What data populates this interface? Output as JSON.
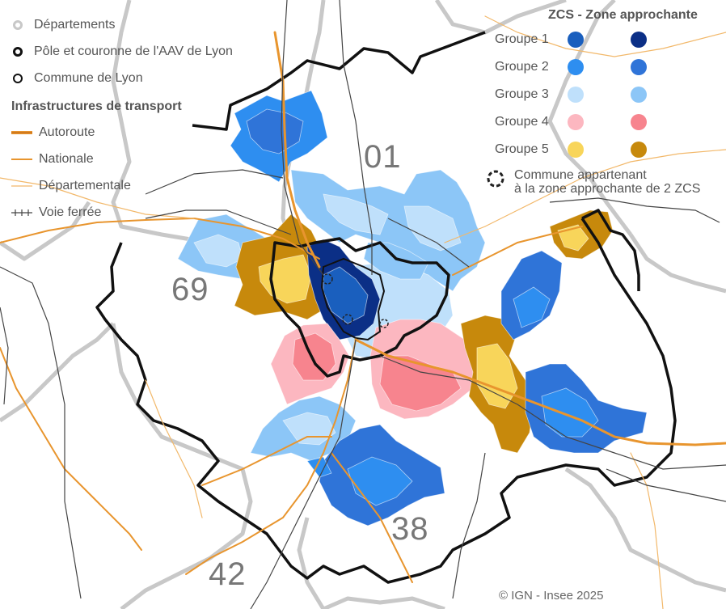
{
  "legend": {
    "departements": "Départements",
    "pole_couronne": "Pôle et couronne de l'AAV de Lyon",
    "commune_lyon": "Commune de Lyon",
    "infra_title": "Infrastructures de transport",
    "autoroute": "Autoroute",
    "nationale": "Nationale",
    "departementale": "Départementale",
    "voie_ferree": "Voie ferrée"
  },
  "zcs_legend": {
    "header": "ZCS -  Zone approchante",
    "groups": [
      {
        "label": "Groupe 1",
        "zcs_color": "#1a5fbe",
        "approach_color": "#0b2f86"
      },
      {
        "label": "Groupe 2",
        "zcs_color": "#2e8ef0",
        "approach_color": "#2f74d8"
      },
      {
        "label": "Groupe 3",
        "zcs_color": "#bfe0fb",
        "approach_color": "#8cc6f7"
      },
      {
        "label": "Groupe 4",
        "zcs_color": "#fcb7c0",
        "approach_color": "#f7848e"
      },
      {
        "label": "Groupe 5",
        "zcs_color": "#f8d55a",
        "approach_color": "#c7890c"
      }
    ],
    "multi_zcs_line1": "Commune appartenant",
    "multi_zcs_line2": "à la zone approchante de 2 ZCS"
  },
  "departement_labels": {
    "d01": "01",
    "d69": "69",
    "d38": "38",
    "d42": "42"
  },
  "credit": "© IGN - Insee 2025",
  "colors": {
    "departement_border": "#c8c8c8",
    "aav_border": "#111111",
    "autoroute": "#e8952e",
    "nationale": "#e8952e",
    "departementale": "#f2b86a",
    "rail": "#444444"
  }
}
